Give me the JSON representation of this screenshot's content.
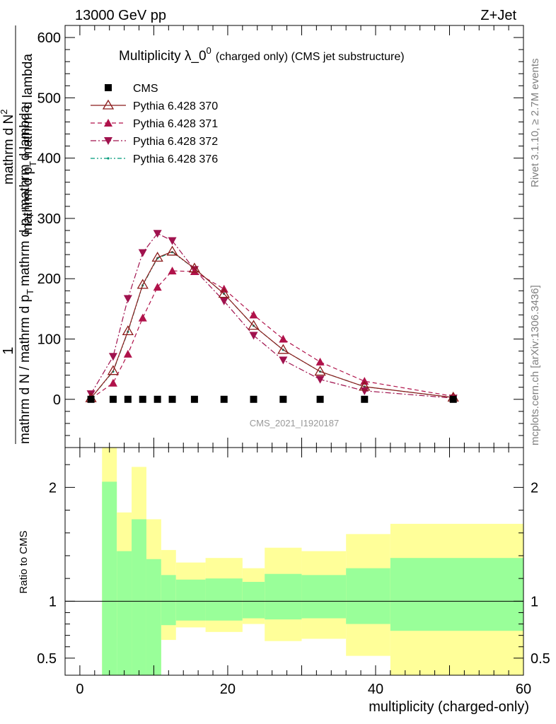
{
  "header": {
    "left": "13000 GeV pp",
    "right": "Z+Jet"
  },
  "side_labels": {
    "rivet": "Rivet 3.1.10, ≥ 2.7M events",
    "mcplots": "mcplots.cern.ch [arXiv:1306.3436]"
  },
  "watermark": "CMS_2021_I1920187",
  "colors": {
    "cms": "#000000",
    "p370": "#8b1a1a",
    "p371": "#b0124a",
    "p372": "#a0124e",
    "p376": "#009a7a",
    "band_inner": "#99ff99",
    "band_outer": "#ffff99"
  },
  "chart_data": [
    {
      "type": "line",
      "title": "Multiplicity λ_0⁰ (charged only) (CMS jet substructure)",
      "title_main": "Multiplicity λ_0",
      "title_sup": "0",
      "title_rest": "(charged only) (CMS jet substructure)",
      "ylabel_numerator": "1",
      "ylabel_denominator": "mathrm d N / mathrm d p_T mathrm d p_T mathrm d lambda",
      "ylabel_numerator_lines": [
        "mathrm d²N",
        "mathrm d p_T mathrm d lambda"
      ],
      "ylabel_denominator_lines": [
        "mathrm d N / mathrm d p_T"
      ],
      "ylabel_lines": [
        "1",
        "mathrm d N / mathrm d p",
        "T",
        "mathrm d p",
        "T",
        "mathrm d lambda"
      ],
      "ylabel_top": "mathrm d N",
      "ylabel_top_sup": "2",
      "ylabel_top_rest": "mathrm d p",
      "ylabel_top_sub": "T",
      "ylabel_top_tail": "mathrm d lambda",
      "ylabel_bottom": "mathrm d N / mathrm d p",
      "ylabel_bottom_sub": "T",
      "ylabel_bottom_rest": "mathrm d p",
      "ylabel_bottom_sub2": "T",
      "ylabel_bottom_tail": "mathrm d lambda",
      "xlim": [
        -2,
        60
      ],
      "ylim": [
        -80,
        620
      ],
      "yticks": [
        0,
        100,
        200,
        300,
        400,
        500,
        600
      ],
      "legend_position": "top-left",
      "series": [
        {
          "name": "CMS",
          "marker": "square",
          "x": [
            1.5,
            4.5,
            6.5,
            8.5,
            10.5,
            12.5,
            15.5,
            19.5,
            23.5,
            27.5,
            32.5,
            38.5,
            50.5
          ],
          "y": [
            0,
            0,
            0,
            0,
            0,
            0,
            0,
            0,
            0,
            0,
            0,
            0,
            0
          ]
        },
        {
          "name": "Pythia 6.428 370",
          "marker": "open-triangle-up",
          "line": "solid",
          "x": [
            1.5,
            4.5,
            6.5,
            8.5,
            10.5,
            12.5,
            15.5,
            19.5,
            23.5,
            27.5,
            32.5,
            38.5,
            50.5
          ],
          "y": [
            2,
            47,
            113,
            190,
            235,
            245,
            217,
            175,
            122,
            82,
            46,
            21,
            3
          ]
        },
        {
          "name": "Pythia 6.428 371",
          "marker": "filled-triangle-up",
          "line": "dashed",
          "x": [
            1.5,
            4.5,
            6.5,
            8.5,
            10.5,
            12.5,
            15.5,
            19.5,
            23.5,
            27.5,
            32.5,
            38.5,
            50.5
          ],
          "y": [
            1,
            27,
            75,
            135,
            186,
            213,
            212,
            183,
            140,
            100,
            62,
            30,
            5
          ]
        },
        {
          "name": "Pythia 6.428 372",
          "marker": "filled-triangle-down",
          "line": "dash-dot",
          "x": [
            1.5,
            4.5,
            6.5,
            8.5,
            10.5,
            12.5,
            15.5,
            19.5,
            23.5,
            27.5,
            32.5,
            38.5,
            50.5
          ],
          "y": [
            9,
            71,
            167,
            243,
            275,
            263,
            215,
            163,
            106,
            65,
            33,
            14,
            2
          ]
        },
        {
          "name": "Pythia 6.428 376",
          "marker": "small-dot",
          "line": "dash-dot-dot",
          "x": [
            1.5,
            4.5,
            6.5,
            8.5,
            10.5,
            12.5,
            15.5,
            19.5,
            23.5,
            27.5,
            32.5,
            38.5,
            50.5
          ],
          "y": [
            2,
            46,
            112,
            189,
            234,
            244,
            217,
            175,
            122,
            82,
            46,
            21,
            3
          ]
        }
      ]
    },
    {
      "type": "area",
      "ylabel": "Ratio to CMS",
      "xlabel": "multiplicity (charged-only)",
      "xlim": [
        -2,
        60
      ],
      "ylim": [
        0.35,
        2.35
      ],
      "xticks": [
        0,
        20,
        40,
        60
      ],
      "yticks": [
        0.5,
        1,
        2
      ],
      "bins": [
        {
          "x0": 0,
          "x1": 3,
          "inner": [
            1,
            1
          ],
          "outer": [
            1,
            1
          ]
        },
        {
          "x0": 3,
          "x1": 5,
          "inner": [
            0.35,
            2.05
          ],
          "outer": [
            0.35,
            2.35
          ]
        },
        {
          "x0": 5,
          "x1": 7,
          "inner": [
            0.35,
            1.44
          ],
          "outer": [
            0.68,
            1.78
          ]
        },
        {
          "x0": 7,
          "x1": 9,
          "inner": [
            0.35,
            1.72
          ],
          "outer": [
            0.35,
            2.18
          ]
        },
        {
          "x0": 9,
          "x1": 11,
          "inner": [
            0.35,
            1.37
          ],
          "outer": [
            0.38,
            1.72
          ]
        },
        {
          "x0": 11,
          "x1": 13,
          "inner": [
            0.79,
            1.23
          ],
          "outer": [
            0.66,
            1.45
          ]
        },
        {
          "x0": 13,
          "x1": 17,
          "inner": [
            0.83,
            1.19
          ],
          "outer": [
            0.77,
            1.34
          ]
        },
        {
          "x0": 17,
          "x1": 22,
          "inner": [
            0.83,
            1.2
          ],
          "outer": [
            0.73,
            1.38
          ]
        },
        {
          "x0": 22,
          "x1": 25,
          "inner": [
            0.85,
            1.17
          ],
          "outer": [
            0.8,
            1.29
          ]
        },
        {
          "x0": 25,
          "x1": 30,
          "inner": [
            0.84,
            1.24
          ],
          "outer": [
            0.65,
            1.47
          ]
        },
        {
          "x0": 30,
          "x1": 36,
          "inner": [
            0.85,
            1.23
          ],
          "outer": [
            0.67,
            1.44
          ]
        },
        {
          "x0": 36,
          "x1": 42,
          "inner": [
            0.8,
            1.29
          ],
          "outer": [
            0.52,
            1.59
          ]
        },
        {
          "x0": 42,
          "x1": 60,
          "inner": [
            0.74,
            1.38
          ],
          "outer": [
            0.35,
            1.68
          ]
        }
      ]
    }
  ]
}
